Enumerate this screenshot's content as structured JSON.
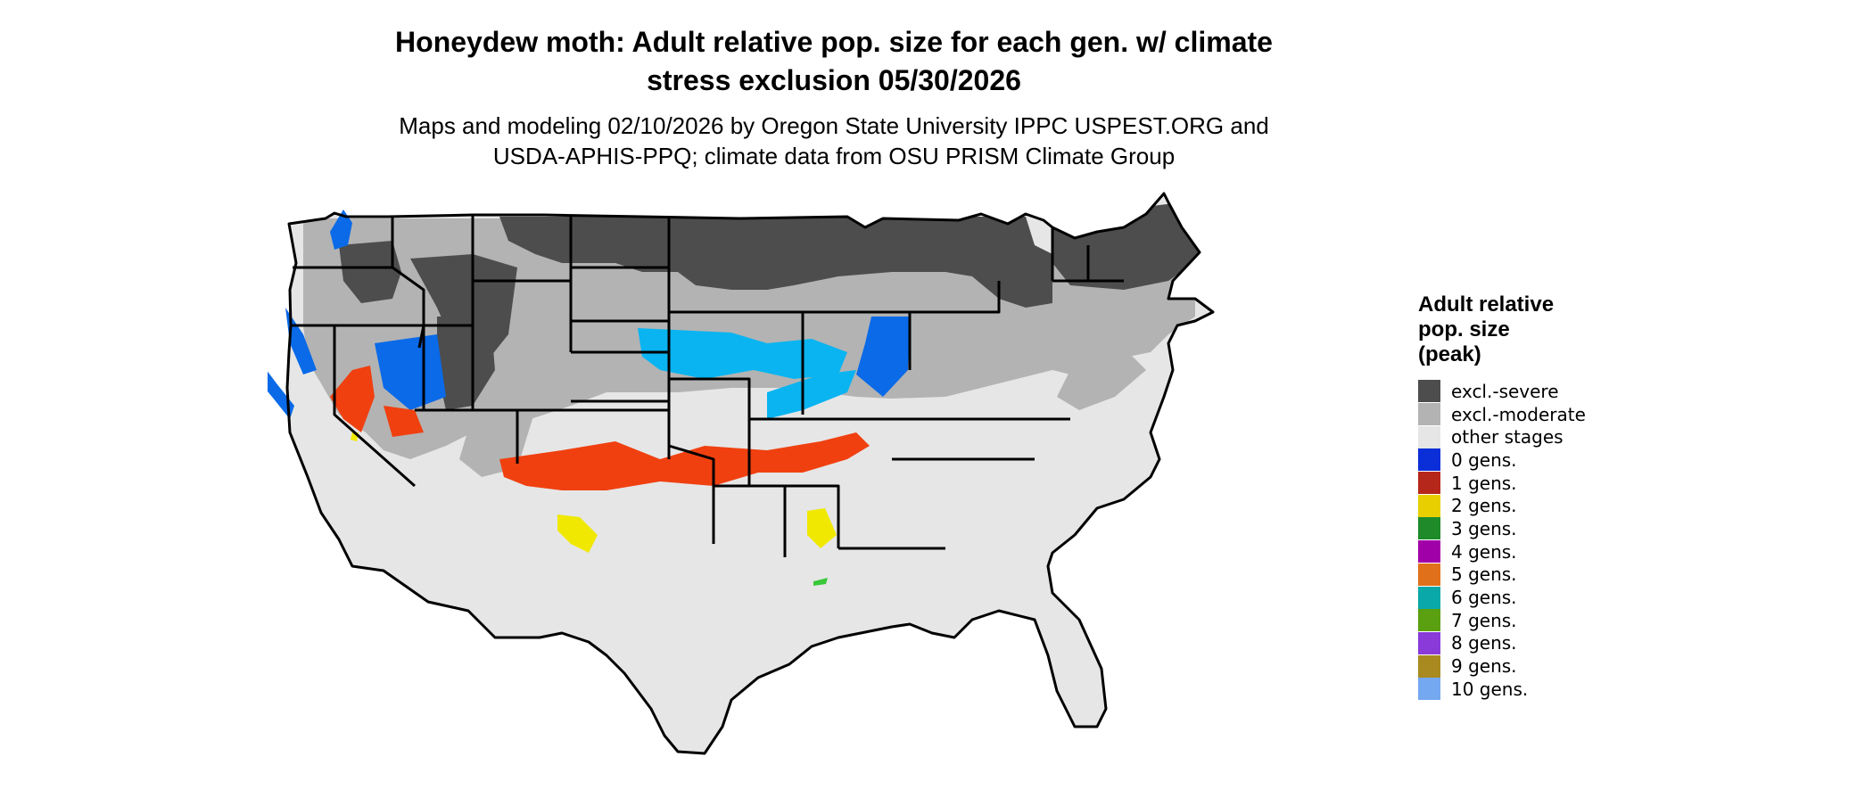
{
  "title": {
    "line1": "Honeydew moth: Adult relative pop. size for each gen. w/ climate",
    "line2": "stress exclusion 05/30/2026"
  },
  "subtitle": {
    "line1": "Maps and modeling 02/10/2026 by Oregon State University IPPC USPEST.ORG and",
    "line2": "USDA-APHIS-PPQ; climate data from OSU PRISM Climate Group"
  },
  "legend": {
    "title_line1": "Adult relative",
    "title_line2": "pop. size",
    "title_line3": "(peak)",
    "items": [
      {
        "label": "excl.-severe",
        "color": "#4d4d4d"
      },
      {
        "label": "excl.-moderate",
        "color": "#b3b3b3"
      },
      {
        "label": "other stages",
        "color": "#e6e6e6"
      },
      {
        "label": "0 gens.",
        "color": "#0a2fd8"
      },
      {
        "label": "1 gens.",
        "color": "#b5271a"
      },
      {
        "label": "2 gens.",
        "color": "#e8d000"
      },
      {
        "label": "3 gens.",
        "color": "#1f8a2a"
      },
      {
        "label": "4 gens.",
        "color": "#a000a8"
      },
      {
        "label": "5 gens.",
        "color": "#e0701a"
      },
      {
        "label": "6 gens.",
        "color": "#0aa8a8"
      },
      {
        "label": "7 gens.",
        "color": "#5aa010"
      },
      {
        "label": "8 gens.",
        "color": "#8a3ad8"
      },
      {
        "label": "9 gens.",
        "color": "#a88a20"
      },
      {
        "label": "10 gens.",
        "color": "#74a8f0"
      }
    ]
  },
  "map_colors": {
    "cyan_zone": "#0ab4f0",
    "blue_zone": "#0a6ae8",
    "red_orange_zone": "#f04010",
    "yellow_zone": "#f0e800",
    "green_spot": "#3ac83a",
    "state_border": "#000000"
  }
}
